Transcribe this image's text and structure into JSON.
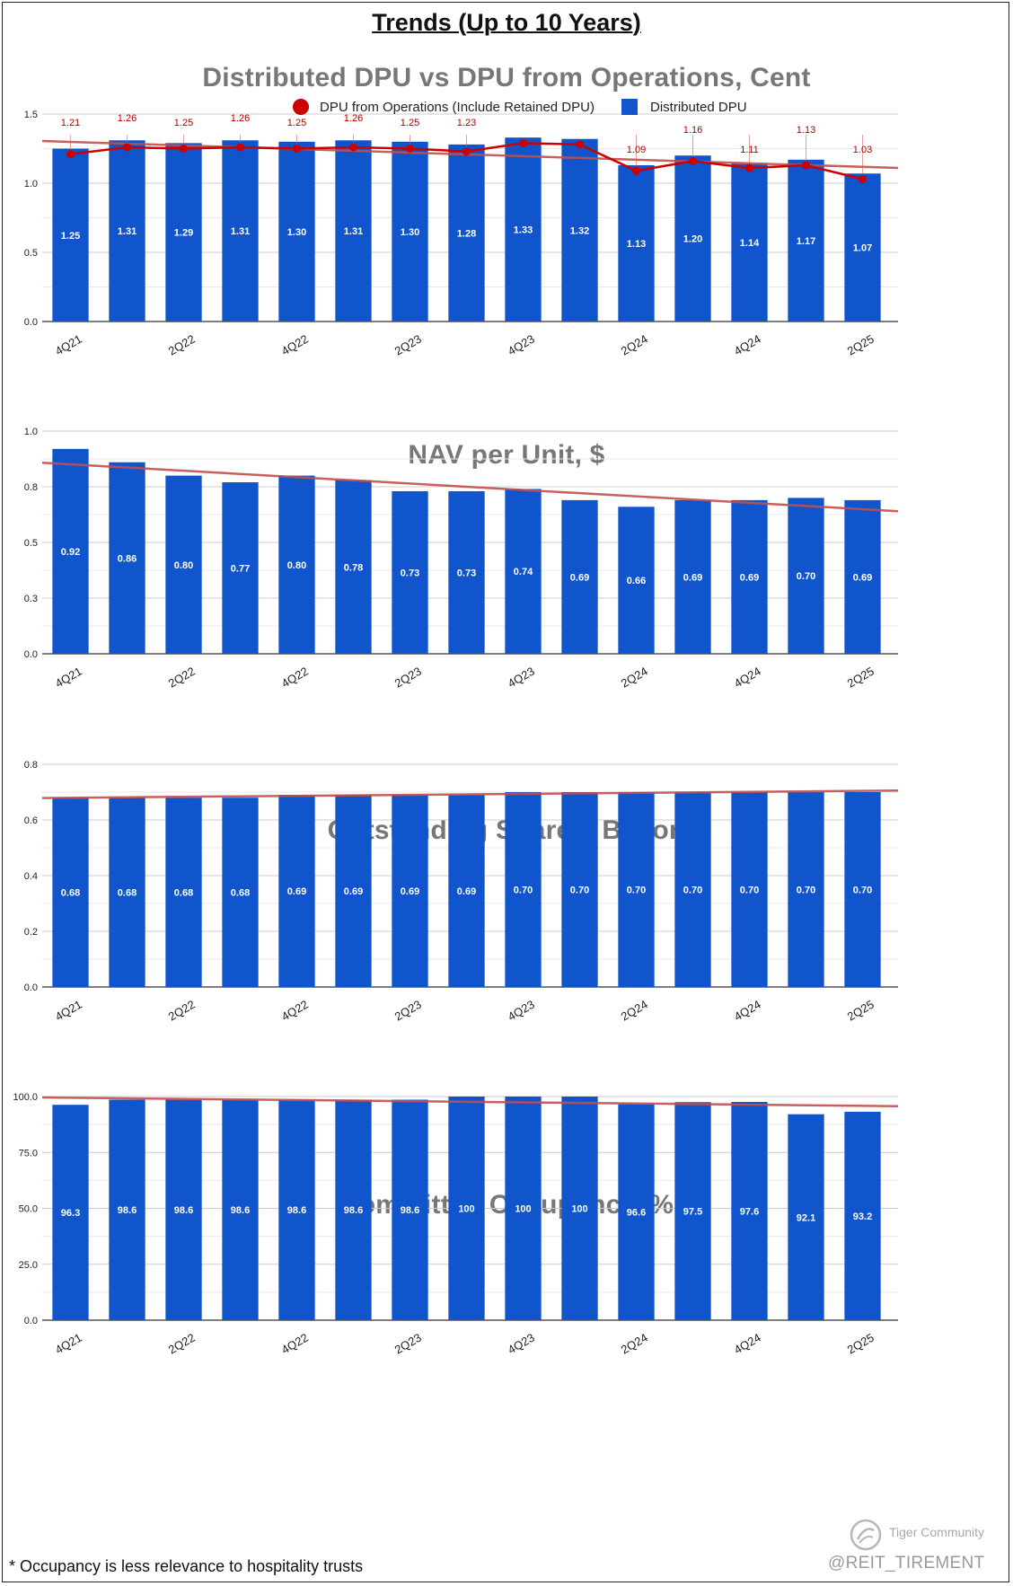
{
  "page_title": "Trends (Up to 10 Years)",
  "footnote": "* Occupancy is less relevance to hospitality trusts",
  "watermark": {
    "brand": "Tiger Community",
    "handle": "@REIT_TIREMENT"
  },
  "colors": {
    "bar": "#1155cc",
    "line": "#cc0000",
    "trend": "#c0504d",
    "title": "#777777",
    "grid": "#d9d9d9"
  },
  "chart_data": [
    {
      "type": "bar",
      "title": "Distributed DPU vs DPU from Operations, Cent",
      "categories": [
        "4Q21",
        "1Q22",
        "2Q22",
        "3Q22",
        "4Q22",
        "1Q23",
        "2Q23",
        "3Q23",
        "4Q23",
        "1Q24",
        "2Q24",
        "3Q24",
        "4Q24",
        "1Q25",
        "2Q25"
      ],
      "x_tick_labels": [
        "4Q21",
        "",
        "2Q22",
        "",
        "4Q22",
        "",
        "2Q23",
        "",
        "4Q23",
        "",
        "2Q24",
        "",
        "4Q24",
        "",
        "2Q25"
      ],
      "y_ticks": [
        "0.0",
        "0.5",
        "1.0",
        "1.5"
      ],
      "ylim": [
        0,
        1.5
      ],
      "legend": "top",
      "trendline": true,
      "series": [
        {
          "name": "Distributed DPU",
          "type": "bar",
          "values": [
            1.25,
            1.31,
            1.29,
            1.31,
            1.3,
            1.31,
            1.3,
            1.28,
            1.33,
            1.32,
            1.13,
            1.2,
            1.14,
            1.17,
            1.07
          ],
          "labels": [
            "1.25",
            "1.31",
            "1.29",
            "1.31",
            "1.30",
            "1.31",
            "1.30",
            "1.28",
            "1.33",
            "1.32",
            "1.13",
            "1.20",
            "1.14",
            "1.17",
            "1.07"
          ]
        },
        {
          "name": "DPU from Operations (Include Retained DPU)",
          "type": "line",
          "values": [
            1.21,
            1.26,
            1.25,
            1.26,
            1.25,
            1.26,
            1.25,
            1.23,
            1.29,
            1.28,
            1.09,
            1.16,
            1.11,
            1.13,
            1.03
          ],
          "labels": [
            "1.21",
            "1.26",
            "1.25",
            "1.26",
            "1.25",
            "1.26",
            "1.25",
            "1.23",
            "",
            "",
            "1.09",
            "1.16",
            "1.11",
            "1.13",
            "1.03"
          ]
        }
      ]
    },
    {
      "type": "bar",
      "title": "NAV per Unit, $",
      "categories": [
        "4Q21",
        "1Q22",
        "2Q22",
        "3Q22",
        "4Q22",
        "1Q23",
        "2Q23",
        "3Q23",
        "4Q23",
        "1Q24",
        "2Q24",
        "3Q24",
        "4Q24",
        "1Q25",
        "2Q25"
      ],
      "x_tick_labels": [
        "4Q21",
        "",
        "2Q22",
        "",
        "4Q22",
        "",
        "2Q23",
        "",
        "4Q23",
        "",
        "2Q24",
        "",
        "4Q24",
        "",
        "2Q25"
      ],
      "y_ticks": [
        "0.0",
        "0.3",
        "0.5",
        "0.8",
        "1.0"
      ],
      "ylim": [
        0,
        1.0
      ],
      "trendline": true,
      "series": [
        {
          "name": "",
          "type": "bar",
          "values": [
            0.92,
            0.86,
            0.8,
            0.77,
            0.8,
            0.78,
            0.73,
            0.73,
            0.74,
            0.69,
            0.66,
            0.69,
            0.69,
            0.7,
            0.69
          ],
          "labels": [
            "0.92",
            "0.86",
            "0.80",
            "0.77",
            "0.80",
            "0.78",
            "0.73",
            "0.73",
            "0.74",
            "0.69",
            "0.66",
            "0.69",
            "0.69",
            "0.70",
            "0.69"
          ]
        }
      ]
    },
    {
      "type": "bar",
      "title": "Outstanding Shares, Billion",
      "categories": [
        "4Q21",
        "1Q22",
        "2Q22",
        "3Q22",
        "4Q22",
        "1Q23",
        "2Q23",
        "3Q23",
        "4Q23",
        "1Q24",
        "2Q24",
        "3Q24",
        "4Q24",
        "1Q25",
        "2Q25"
      ],
      "x_tick_labels": [
        "4Q21",
        "",
        "2Q22",
        "",
        "4Q22",
        "",
        "2Q23",
        "",
        "4Q23",
        "",
        "2Q24",
        "",
        "4Q24",
        "",
        "2Q25"
      ],
      "y_ticks": [
        "0.0",
        "0.2",
        "0.4",
        "0.6",
        "0.8"
      ],
      "ylim": [
        0,
        0.8
      ],
      "trendline": true,
      "series": [
        {
          "name": "",
          "type": "bar",
          "values": [
            0.68,
            0.68,
            0.68,
            0.68,
            0.69,
            0.69,
            0.69,
            0.69,
            0.7,
            0.7,
            0.7,
            0.7,
            0.7,
            0.7,
            0.7
          ],
          "labels": [
            "0.68",
            "0.68",
            "0.68",
            "0.68",
            "0.69",
            "0.69",
            "0.69",
            "0.69",
            "0.70",
            "0.70",
            "0.70",
            "0.70",
            "0.70",
            "0.70",
            "0.70"
          ]
        }
      ]
    },
    {
      "type": "bar",
      "title": "Committed Occupancy, %",
      "categories": [
        "4Q21",
        "1Q22",
        "2Q22",
        "3Q22",
        "4Q22",
        "1Q23",
        "2Q23",
        "3Q23",
        "4Q23",
        "1Q24",
        "2Q24",
        "3Q24",
        "4Q24",
        "1Q25",
        "2Q25"
      ],
      "x_tick_labels": [
        "4Q21",
        "",
        "2Q22",
        "",
        "4Q22",
        "",
        "2Q23",
        "",
        "4Q23",
        "",
        "2Q24",
        "",
        "4Q24",
        "",
        "2Q25"
      ],
      "y_ticks": [
        "0.0",
        "25.0",
        "50.0",
        "75.0",
        "100.0"
      ],
      "ylim": [
        0,
        100
      ],
      "trendline": true,
      "series": [
        {
          "name": "",
          "type": "bar",
          "values": [
            96.3,
            98.6,
            98.6,
            98.6,
            98.6,
            98.6,
            98.6,
            100,
            100,
            100,
            96.6,
            97.5,
            97.6,
            92.1,
            93.2
          ],
          "labels": [
            "96.3",
            "98.6",
            "98.6",
            "98.6",
            "98.6",
            "98.6",
            "98.6",
            "100",
            "100",
            "100",
            "96.6",
            "97.5",
            "97.6",
            "92.1",
            "93.2"
          ]
        }
      ]
    }
  ]
}
